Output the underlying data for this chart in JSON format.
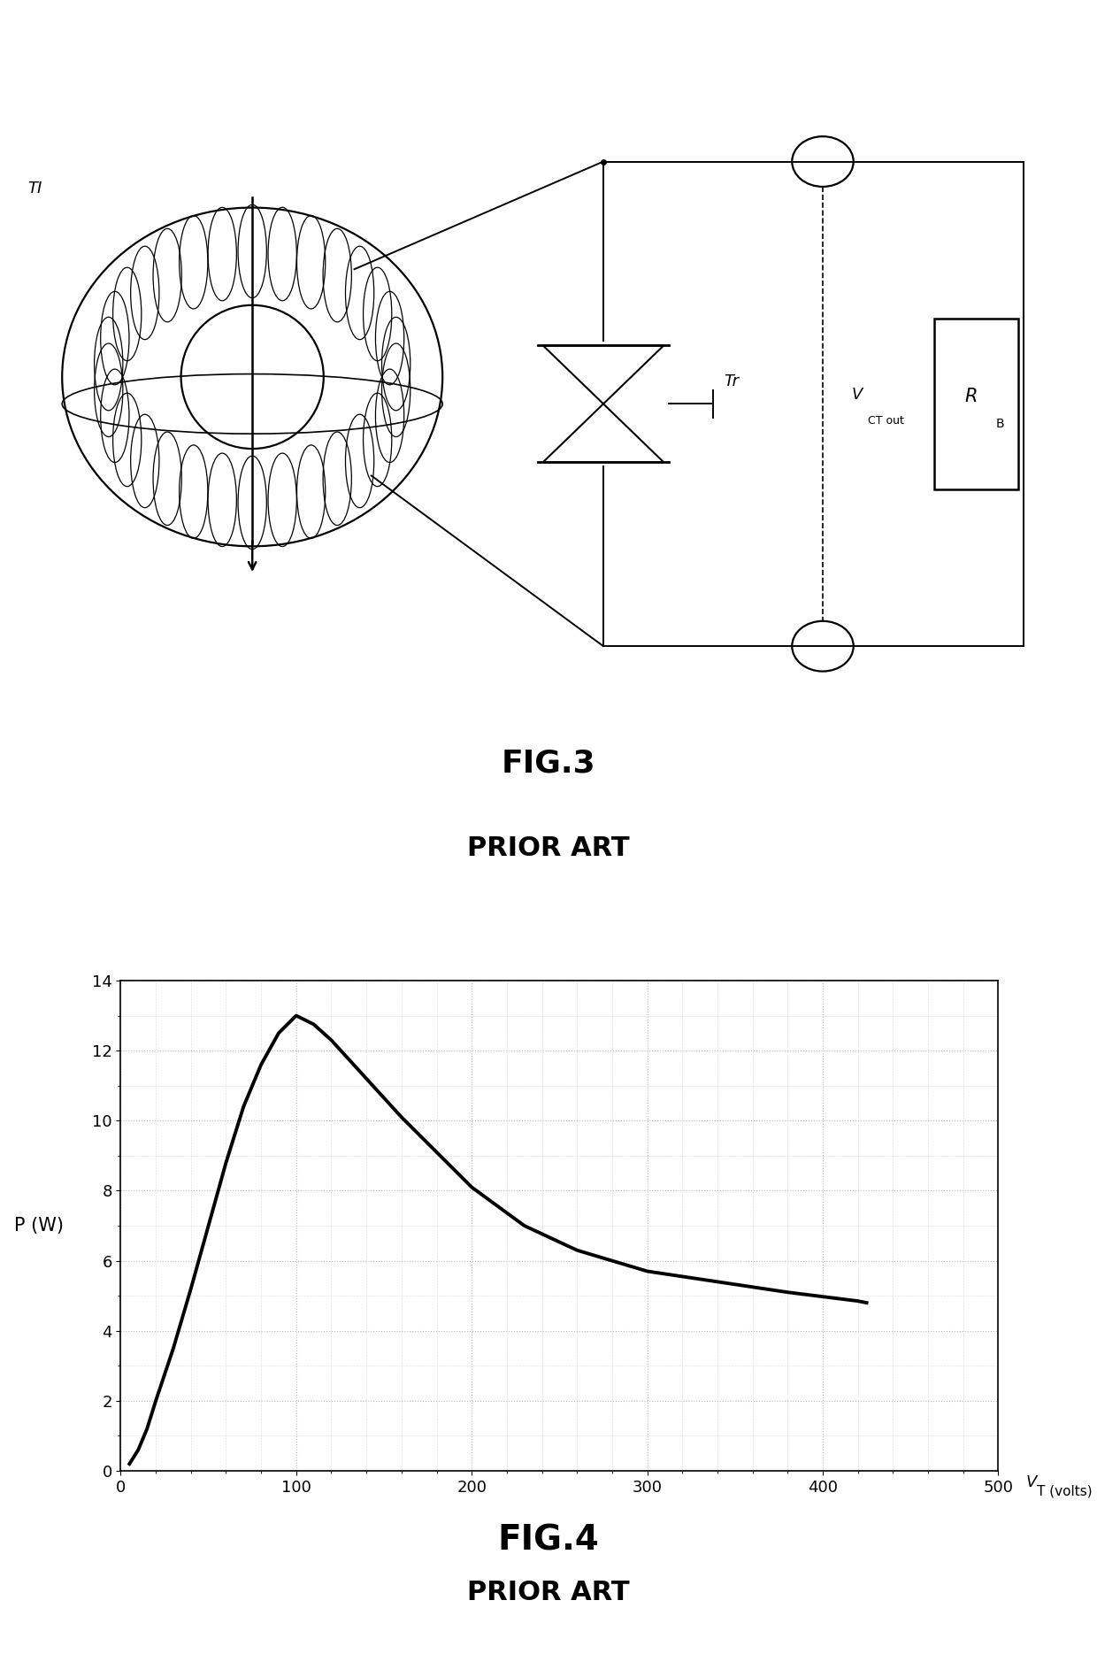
{
  "fig_width": 12.4,
  "fig_height": 18.78,
  "background_color": "#ffffff",
  "fig3_label": "FIG.3",
  "fig3_sublabel": "PRIOR ART",
  "fig4_label": "FIG.4",
  "fig4_sublabel": "PRIOR ART",
  "TI_label": "TI",
  "Tr_label": "Tr",
  "VCT_label": "V",
  "VCT_sub": "CT out",
  "RB_label": "R",
  "RB_sub": "B",
  "plot_xlabel_main": "V",
  "plot_xlabel_sub": "T (volts)",
  "plot_ylabel": "P (W)",
  "plot_xlim": [
    0,
    500
  ],
  "plot_ylim": [
    0,
    14
  ],
  "plot_xticks": [
    0,
    100,
    200,
    300,
    400,
    500
  ],
  "plot_yticks": [
    0,
    2,
    4,
    6,
    8,
    10,
    12,
    14
  ],
  "curve_x": [
    5,
    10,
    15,
    20,
    30,
    40,
    50,
    60,
    70,
    80,
    90,
    100,
    110,
    120,
    140,
    160,
    180,
    200,
    230,
    260,
    300,
    340,
    380,
    420,
    425
  ],
  "curve_y": [
    0.2,
    0.6,
    1.2,
    2.0,
    3.5,
    5.2,
    7.0,
    8.8,
    10.4,
    11.6,
    12.5,
    13.0,
    12.75,
    12.3,
    11.2,
    10.1,
    9.1,
    8.1,
    7.0,
    6.3,
    5.7,
    5.4,
    5.1,
    4.85,
    4.8
  ],
  "curve_color": "#000000",
  "curve_lw": 2.8,
  "grid_color": "#bbbbbb",
  "grid_ls": ":",
  "grid_lw": 0.8,
  "circuit_color": "#000000"
}
